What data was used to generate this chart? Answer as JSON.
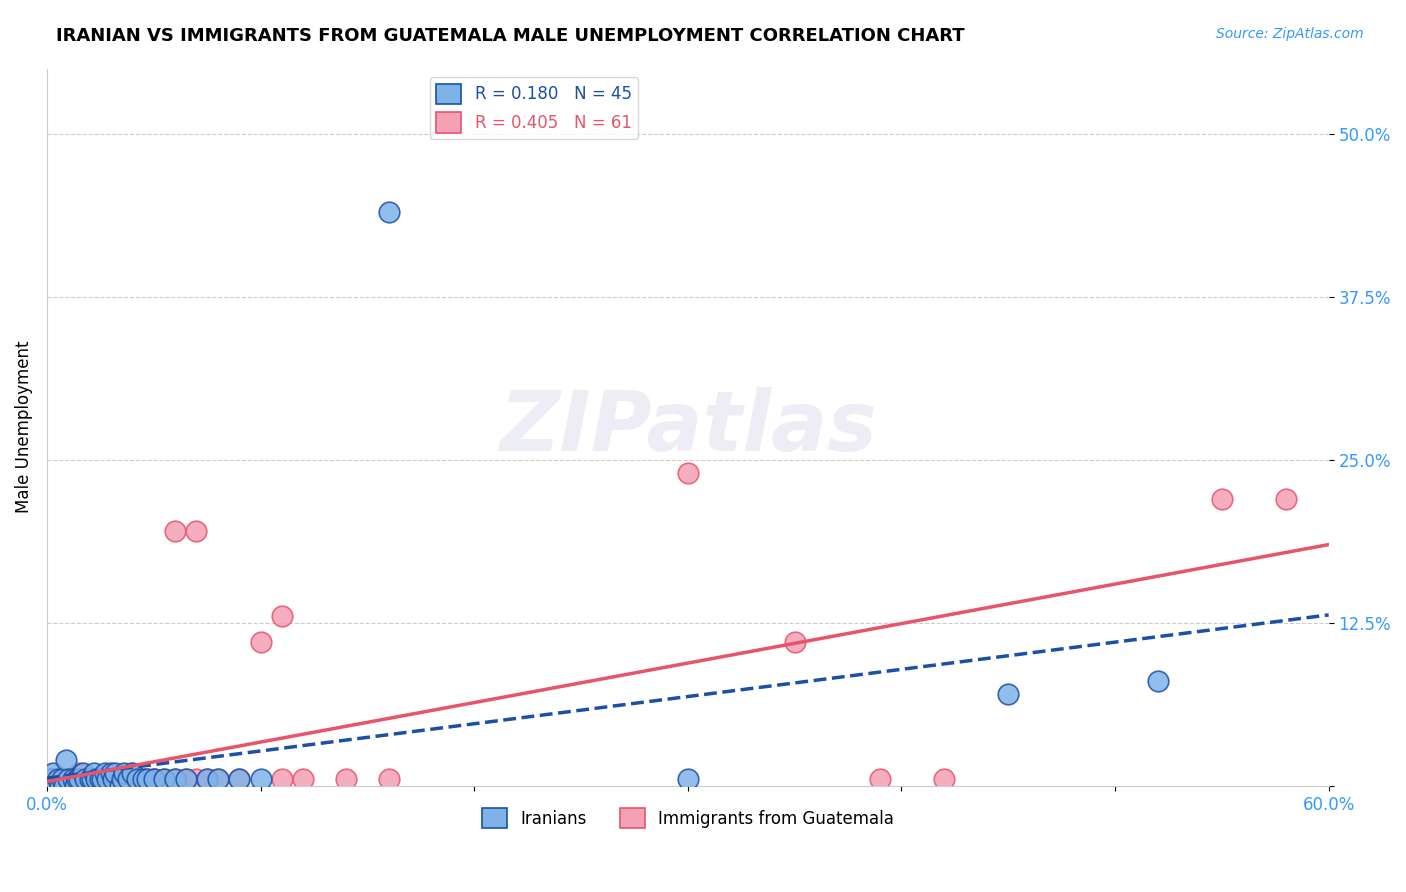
{
  "title": "IRANIAN VS IMMIGRANTS FROM GUATEMALA MALE UNEMPLOYMENT CORRELATION CHART",
  "source": "Source: ZipAtlas.com",
  "ylabel": "Male Unemployment",
  "xlabel": "",
  "xlim": [
    0.0,
    0.6
  ],
  "ylim": [
    0.0,
    0.55
  ],
  "yticks": [
    0.0,
    0.125,
    0.25,
    0.375,
    0.5
  ],
  "ytick_labels": [
    "",
    "12.5%",
    "25.0%",
    "37.5%",
    "50.0%"
  ],
  "xticks": [
    0.0,
    0.1,
    0.2,
    0.3,
    0.4,
    0.5,
    0.6
  ],
  "xtick_labels": [
    "0.0%",
    "",
    "",
    "",
    "",
    "",
    "60.0%"
  ],
  "iranian_color": "#7EB3E8",
  "guatemalan_color": "#F4A0B5",
  "iranian_line_color": "#1B4FA8",
  "guatemalan_line_color": "#E8546A",
  "legend_R_iranian": "0.180",
  "legend_N_iranian": "45",
  "legend_R_guatemalan": "0.405",
  "legend_N_guatemalan": "61",
  "watermark": "ZIPatlas",
  "iranian_points": [
    [
      0.002,
      0.005
    ],
    [
      0.003,
      0.01
    ],
    [
      0.005,
      0.005
    ],
    [
      0.006,
      0.0
    ],
    [
      0.007,
      0.005
    ],
    [
      0.008,
      0.0
    ],
    [
      0.009,
      0.02
    ],
    [
      0.01,
      0.005
    ],
    [
      0.012,
      0.005
    ],
    [
      0.013,
      0.0
    ],
    [
      0.014,
      0.005
    ],
    [
      0.015,
      0.005
    ],
    [
      0.017,
      0.01
    ],
    [
      0.018,
      0.005
    ],
    [
      0.02,
      0.005
    ],
    [
      0.021,
      0.005
    ],
    [
      0.022,
      0.01
    ],
    [
      0.023,
      0.005
    ],
    [
      0.025,
      0.005
    ],
    [
      0.026,
      0.005
    ],
    [
      0.027,
      0.01
    ],
    [
      0.028,
      0.005
    ],
    [
      0.03,
      0.01
    ],
    [
      0.031,
      0.005
    ],
    [
      0.032,
      0.01
    ],
    [
      0.034,
      0.0
    ],
    [
      0.035,
      0.005
    ],
    [
      0.036,
      0.01
    ],
    [
      0.038,
      0.005
    ],
    [
      0.04,
      0.01
    ],
    [
      0.042,
      0.005
    ],
    [
      0.045,
      0.005
    ],
    [
      0.047,
      0.005
    ],
    [
      0.05,
      0.005
    ],
    [
      0.055,
      0.005
    ],
    [
      0.06,
      0.005
    ],
    [
      0.065,
      0.005
    ],
    [
      0.075,
      0.005
    ],
    [
      0.08,
      0.005
    ],
    [
      0.09,
      0.005
    ],
    [
      0.1,
      0.005
    ],
    [
      0.16,
      0.44
    ],
    [
      0.3,
      0.005
    ],
    [
      0.45,
      0.07
    ],
    [
      0.52,
      0.08
    ]
  ],
  "guatemalan_points": [
    [
      0.002,
      0.005
    ],
    [
      0.003,
      0.005
    ],
    [
      0.005,
      0.0
    ],
    [
      0.006,
      0.005
    ],
    [
      0.007,
      0.005
    ],
    [
      0.008,
      0.005
    ],
    [
      0.009,
      0.0
    ],
    [
      0.01,
      0.005
    ],
    [
      0.011,
      0.005
    ],
    [
      0.012,
      0.0
    ],
    [
      0.013,
      0.005
    ],
    [
      0.014,
      0.005
    ],
    [
      0.015,
      0.01
    ],
    [
      0.016,
      0.005
    ],
    [
      0.018,
      0.0
    ],
    [
      0.019,
      0.005
    ],
    [
      0.02,
      0.005
    ],
    [
      0.021,
      0.005
    ],
    [
      0.022,
      0.005
    ],
    [
      0.023,
      0.0
    ],
    [
      0.024,
      0.005
    ],
    [
      0.025,
      0.005
    ],
    [
      0.027,
      0.005
    ],
    [
      0.028,
      0.005
    ],
    [
      0.029,
      0.005
    ],
    [
      0.03,
      0.005
    ],
    [
      0.032,
      0.005
    ],
    [
      0.033,
      0.005
    ],
    [
      0.035,
      0.005
    ],
    [
      0.037,
      0.005
    ],
    [
      0.038,
      0.005
    ],
    [
      0.04,
      0.01
    ],
    [
      0.042,
      0.005
    ],
    [
      0.045,
      0.005
    ],
    [
      0.047,
      0.005
    ],
    [
      0.05,
      0.005
    ],
    [
      0.055,
      0.005
    ],
    [
      0.06,
      0.005
    ],
    [
      0.065,
      0.005
    ],
    [
      0.07,
      0.005
    ],
    [
      0.075,
      0.005
    ],
    [
      0.08,
      0.005
    ],
    [
      0.09,
      0.005
    ],
    [
      0.1,
      0.11
    ],
    [
      0.11,
      0.005
    ],
    [
      0.12,
      0.005
    ],
    [
      0.14,
      0.005
    ],
    [
      0.16,
      0.005
    ],
    [
      0.06,
      0.195
    ],
    [
      0.3,
      0.24
    ],
    [
      0.35,
      0.11
    ],
    [
      0.39,
      0.005
    ],
    [
      0.42,
      0.005
    ],
    [
      0.07,
      0.195
    ],
    [
      0.11,
      0.13
    ],
    [
      0.55,
      0.22
    ],
    [
      0.58,
      0.22
    ],
    [
      0.05,
      0.005
    ],
    [
      0.03,
      0.005
    ],
    [
      0.01,
      0.005
    ],
    [
      0.005,
      0.005
    ]
  ]
}
